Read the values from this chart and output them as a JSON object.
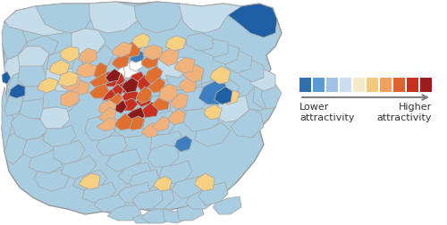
{
  "legend_colors": [
    "#2e6fad",
    "#5b9bd5",
    "#9dc3e6",
    "#c9dff0",
    "#f5e9c8",
    "#f5c97a",
    "#f0a060",
    "#e06030",
    "#c83020",
    "#9b1c1c"
  ],
  "arrow_color": "#808080",
  "label_lower": "Lower\nattractivity",
  "label_higher": "Higher\nattractivity",
  "label_fontsize": 8,
  "background_color": "#ffffff",
  "edge_color": "#aaaaaa",
  "edge_lw": 0.6
}
